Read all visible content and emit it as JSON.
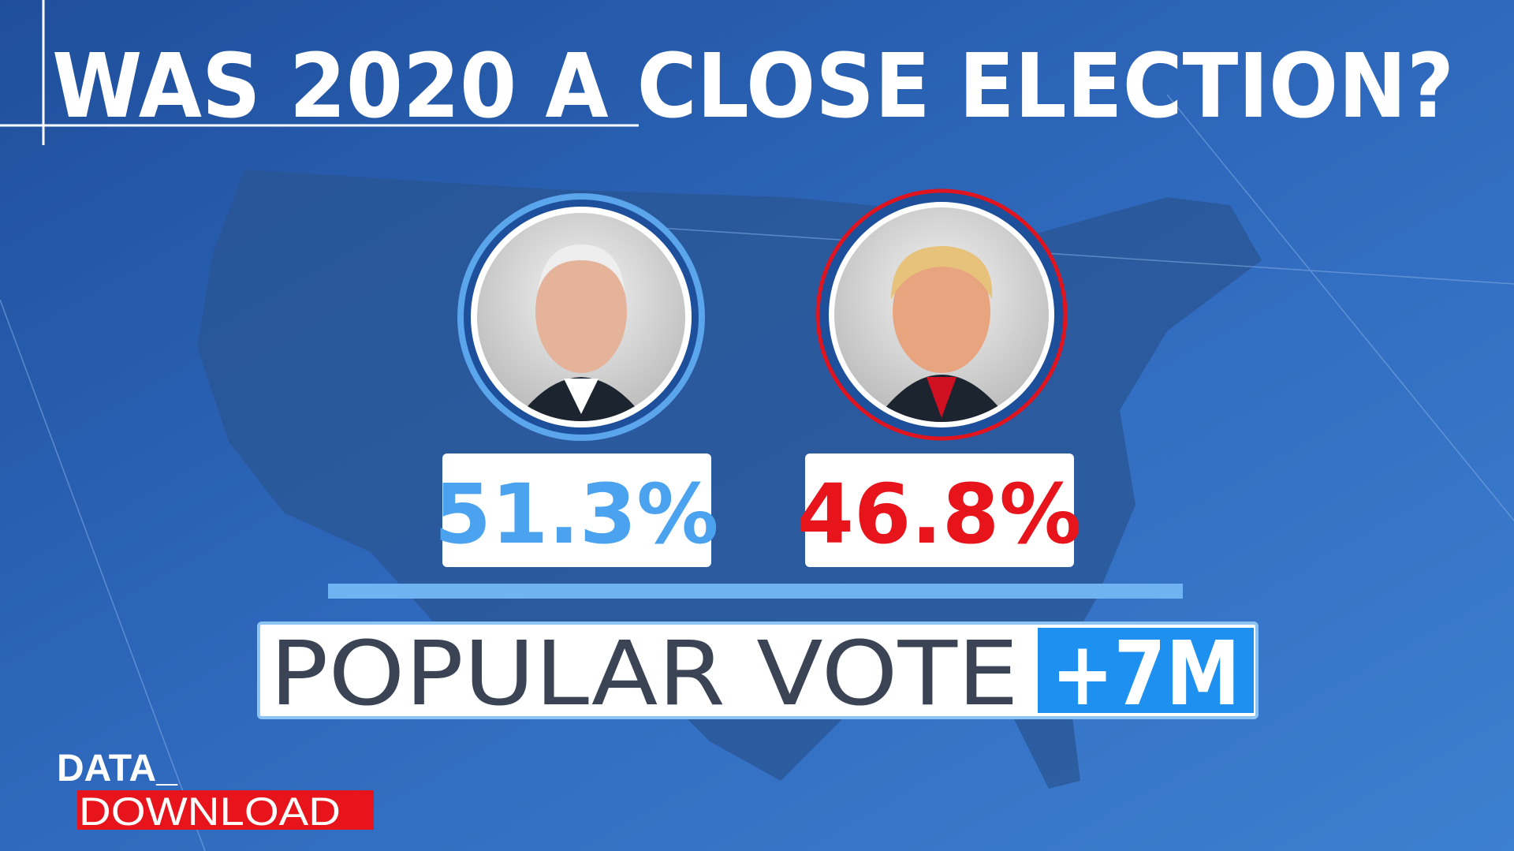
{
  "header": {
    "title": "WAS 2020 A CLOSE ELECTION?"
  },
  "candidates": [
    {
      "share": "51.3%"
    },
    {
      "share": "46.8%"
    }
  ],
  "margin": {
    "label": "POPULAR VOTE",
    "value": "+7M"
  },
  "logo": {
    "top": "DATA_",
    "bottom": "DOWNLOAD"
  }
}
